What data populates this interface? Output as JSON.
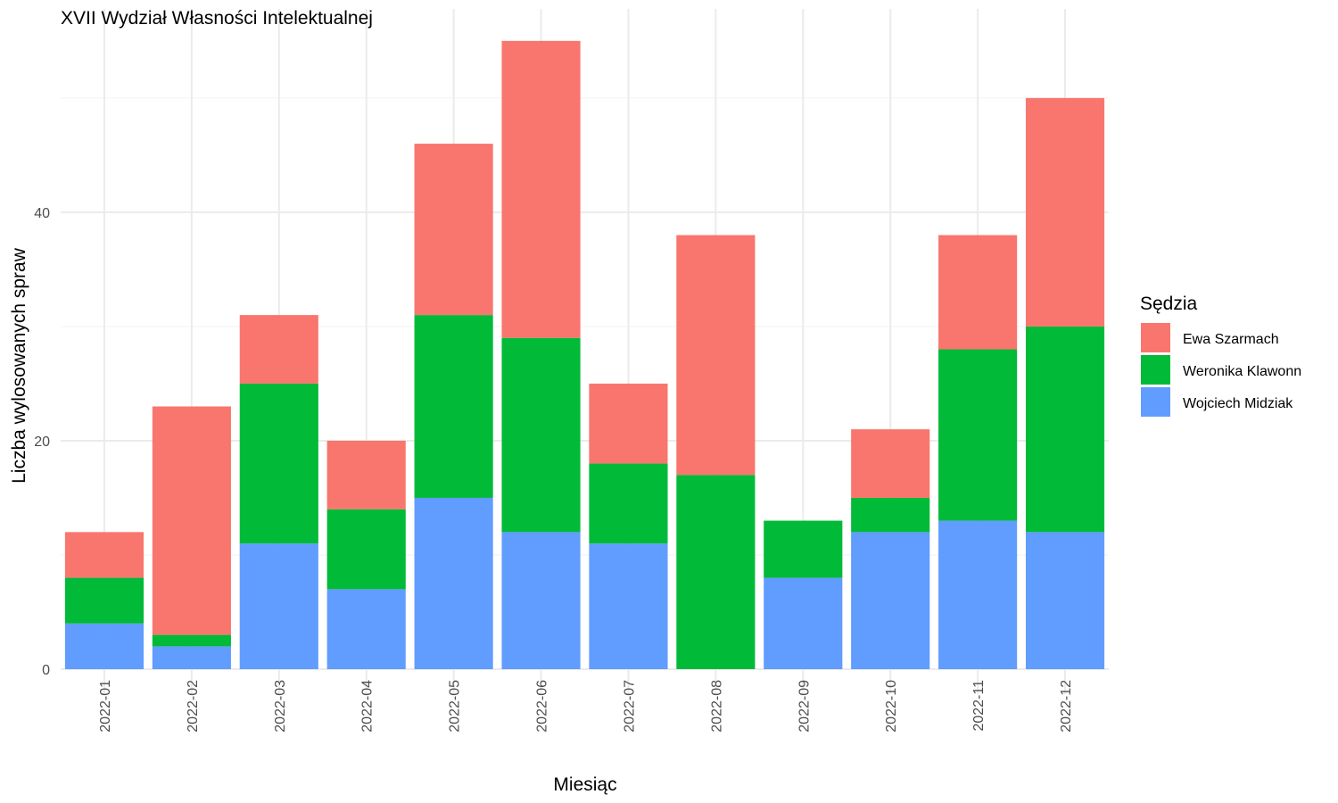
{
  "chart_data": {
    "type": "bar",
    "stacked": true,
    "title": "XVII Wydział Własności Intelektualnej",
    "xlabel": "Miesiąc",
    "ylabel": "Liczba wylosowanych spraw",
    "categories": [
      "2022-01",
      "2022-02",
      "2022-03",
      "2022-04",
      "2022-05",
      "2022-06",
      "2022-07",
      "2022-08",
      "2022-09",
      "2022-10",
      "2022-11",
      "2022-12"
    ],
    "yticks": [
      0,
      20,
      40
    ],
    "ylim": [
      0,
      57
    ],
    "grid": true,
    "legend": {
      "title": "Sędzia",
      "position": "right"
    },
    "series": [
      {
        "name": "Wojciech Midziak",
        "color": "#619CFF",
        "values": [
          4,
          2,
          11,
          7,
          15,
          12,
          11,
          0,
          8,
          12,
          13,
          12
        ]
      },
      {
        "name": "Weronika Klawonn",
        "color": "#00BA38",
        "values": [
          4,
          1,
          14,
          7,
          16,
          17,
          7,
          17,
          5,
          3,
          15,
          18
        ]
      },
      {
        "name": "Ewa Szarmach",
        "color": "#F8766D",
        "values": [
          4,
          20,
          6,
          6,
          15,
          26,
          7,
          21,
          0,
          6,
          10,
          20
        ]
      }
    ]
  }
}
